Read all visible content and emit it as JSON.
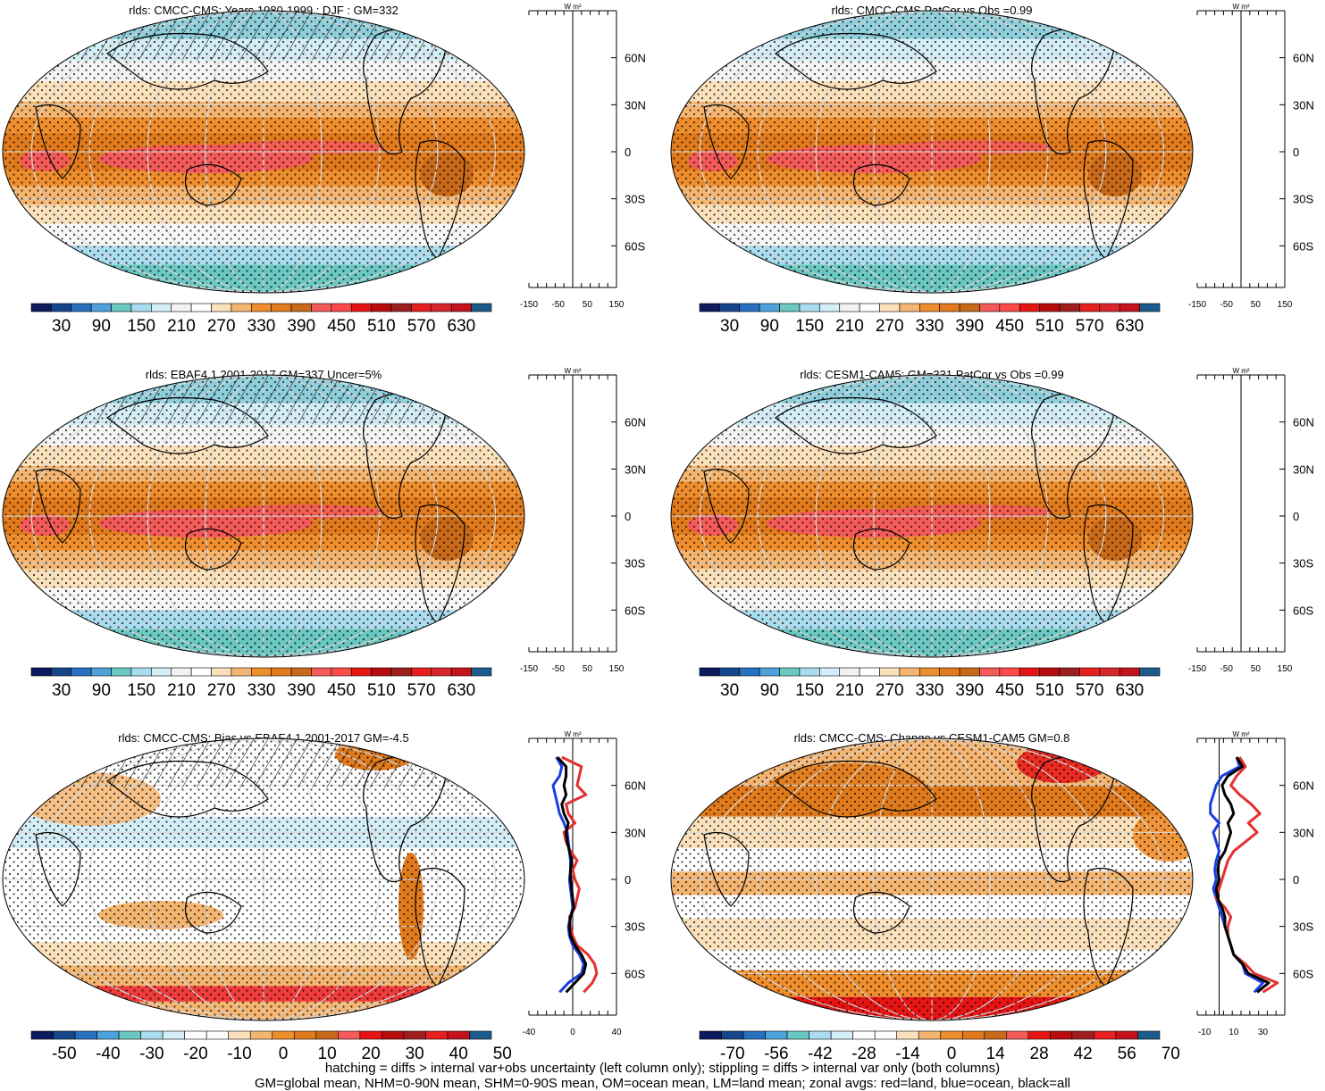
{
  "colors": {
    "abs_scale": [
      "#0c1a5e",
      "#15468c",
      "#2970c0",
      "#4ea2db",
      "#6bc7c2",
      "#a9dcee",
      "#d4eef7",
      "#f2f2f2",
      "#ffffff",
      "#fbe1bb",
      "#f4b571",
      "#ef8e2d",
      "#e07a1c",
      "#c86a1a",
      "#f55a5a",
      "#ff4a4a",
      "#e71414",
      "#b80c0c",
      "#9e1e1e",
      "#e91f1f",
      "#d8262c",
      "#c4131c",
      "#1c5b8c"
    ],
    "diff_scale": [
      "#0c1a5e",
      "#15468c",
      "#2970c0",
      "#4ea2db",
      "#6bc7c2",
      "#a9dcee",
      "#d4eef7",
      "#ffffff",
      "#ffffff",
      "#fbe1bb",
      "#f4b571",
      "#ef8e2d",
      "#e07a1c",
      "#c86a1a",
      "#f55a5a",
      "#e71414",
      "#b80c0c",
      "#9e1e1e",
      "#e91f1f",
      "#c4131c",
      "#1c5b8c"
    ],
    "land": "#e53030",
    "ocean": "#1a3fe0",
    "all": "#000000"
  },
  "chart_data": [
    {
      "type": "heatmap",
      "title": "rlds: CMCC-CMS: Years 1980-1999 : DJF : GM=332",
      "colorbar_ticks": [
        "30",
        "90",
        "150",
        "210",
        "270",
        "330",
        "390",
        "450",
        "510",
        "570",
        "630"
      ],
      "zonal_ticks": [
        "-150",
        "-50",
        "50",
        "150"
      ],
      "lat_ticks": [
        "60N",
        "30N",
        "0",
        "30S",
        "60S"
      ],
      "zonal_unit": "W m²",
      "scale": "abs",
      "hatched": true,
      "zonal_series": []
    },
    {
      "type": "heatmap",
      "title": "rlds: CMCC-CMS PatCor vs Obs =0.99",
      "colorbar_ticks": [
        "30",
        "90",
        "150",
        "210",
        "270",
        "330",
        "390",
        "450",
        "510",
        "570",
        "630"
      ],
      "zonal_ticks": [
        "-150",
        "-50",
        "50",
        "150"
      ],
      "lat_ticks": [
        "60N",
        "30N",
        "0",
        "30S",
        "60S"
      ],
      "zonal_unit": "W m²",
      "scale": "abs",
      "hatched": false,
      "zonal_series": []
    },
    {
      "type": "heatmap",
      "title": "rlds: EBAF4.1 2001-2017 GM=337 Uncer=5%",
      "colorbar_ticks": [
        "30",
        "90",
        "150",
        "210",
        "270",
        "330",
        "390",
        "450",
        "510",
        "570",
        "630"
      ],
      "zonal_ticks": [
        "-150",
        "-50",
        "50",
        "150"
      ],
      "lat_ticks": [
        "60N",
        "30N",
        "0",
        "30S",
        "60S"
      ],
      "zonal_unit": "W m²",
      "scale": "abs",
      "hatched": true,
      "zonal_series": []
    },
    {
      "type": "heatmap",
      "title": "rlds: CESM1-CAM5: GM=331 PatCor vs Obs =0.99",
      "colorbar_ticks": [
        "30",
        "90",
        "150",
        "210",
        "270",
        "330",
        "390",
        "450",
        "510",
        "570",
        "630"
      ],
      "zonal_ticks": [
        "-150",
        "-50",
        "50",
        "150"
      ],
      "lat_ticks": [
        "60N",
        "30N",
        "0",
        "30S",
        "60S"
      ],
      "zonal_unit": "W m²",
      "scale": "abs",
      "hatched": false,
      "zonal_series": []
    },
    {
      "type": "heatmap",
      "title": "rlds: CMCC-CMS: Bias vs EBAF4.1 2001-2017 GM=-4.5",
      "colorbar_ticks": [
        "-50",
        "-40",
        "-30",
        "-20",
        "-10",
        "0",
        "10",
        "20",
        "30",
        "40",
        "50"
      ],
      "zonal_ticks": [
        "-40",
        "0",
        "40"
      ],
      "lat_ticks": [
        "60N",
        "30N",
        "0",
        "30S",
        "60S"
      ],
      "zonal_unit": "W m²",
      "scale": "diff",
      "hatched": true,
      "zonal_xlim": [
        -40,
        40
      ],
      "zonal_series": [
        {
          "key": "ocean",
          "lat": [
            78,
            72,
            66,
            60,
            54,
            48,
            42,
            36,
            30,
            24,
            18,
            12,
            6,
            0,
            -6,
            -12,
            -18,
            -24,
            -30,
            -36,
            -42,
            -48,
            -54,
            -60,
            -66,
            -72
          ],
          "values": [
            -15,
            -10,
            -12,
            -18,
            -16,
            -14,
            -12,
            -8,
            -5,
            -4,
            -3,
            -2,
            -2,
            -3,
            -2,
            -1,
            0,
            -2,
            -4,
            -3,
            0,
            6,
            10,
            8,
            -4,
            -12
          ]
        },
        {
          "key": "land",
          "lat": [
            78,
            72,
            66,
            60,
            54,
            48,
            42,
            36,
            30,
            24,
            18,
            12,
            6,
            0,
            -6,
            -12,
            -18,
            -24,
            -30,
            -36,
            -42,
            -48,
            -54,
            -60,
            -66,
            -72
          ],
          "values": [
            -10,
            8,
            6,
            4,
            12,
            -6,
            -4,
            2,
            -8,
            -6,
            -2,
            4,
            0,
            2,
            6,
            4,
            2,
            -3,
            -2,
            0,
            4,
            14,
            20,
            22,
            18,
            10
          ]
        },
        {
          "key": "all",
          "lat": [
            78,
            72,
            66,
            60,
            54,
            48,
            42,
            36,
            30,
            24,
            18,
            12,
            6,
            0,
            -6,
            -12,
            -18,
            -24,
            -30,
            -36,
            -42,
            -48,
            -54,
            -60,
            -66,
            -72
          ],
          "values": [
            -14,
            -6,
            -6,
            -8,
            -6,
            -10,
            -8,
            -4,
            -6,
            -5,
            -3,
            -1,
            -2,
            -2,
            -1,
            0,
            1,
            -2,
            -3,
            -2,
            2,
            8,
            12,
            10,
            2,
            -6
          ]
        }
      ]
    },
    {
      "type": "heatmap",
      "title": "rlds: CMCC-CMS: Change vs CESM1-CAM5 GM=0.8",
      "colorbar_ticks": [
        "-70",
        "-56",
        "-42",
        "-28",
        "-14",
        "0",
        "14",
        "28",
        "42",
        "56",
        "70"
      ],
      "zonal_ticks": [
        "-10",
        "10",
        "30"
      ],
      "lat_ticks": [
        "60N",
        "30N",
        "0",
        "30S",
        "60S"
      ],
      "zonal_unit": "W m²",
      "scale": "diff",
      "hatched": false,
      "zonal_xlim": [
        -15,
        45
      ],
      "zonal_series": [
        {
          "key": "ocean",
          "lat": [
            78,
            72,
            66,
            60,
            54,
            48,
            42,
            36,
            30,
            24,
            18,
            12,
            6,
            0,
            -6,
            -12,
            -18,
            -24,
            -30,
            -36,
            -42,
            -48,
            -54,
            -60,
            -66,
            -72
          ],
          "values": [
            12,
            14,
            2,
            -2,
            -4,
            -6,
            -6,
            0,
            -4,
            -2,
            0,
            -2,
            -3,
            -2,
            -4,
            -2,
            0,
            2,
            4,
            6,
            8,
            10,
            16,
            18,
            30,
            24
          ]
        },
        {
          "key": "land",
          "lat": [
            78,
            72,
            66,
            60,
            54,
            48,
            42,
            36,
            30,
            24,
            18,
            12,
            6,
            0,
            -6,
            -12,
            -18,
            -24,
            -30,
            -36,
            -42,
            -48,
            -54,
            -60,
            -66,
            -72
          ],
          "values": [
            14,
            18,
            12,
            8,
            14,
            22,
            28,
            20,
            26,
            18,
            10,
            6,
            4,
            2,
            0,
            -2,
            4,
            8,
            6,
            6,
            8,
            10,
            18,
            24,
            40,
            30
          ]
        },
        {
          "key": "all",
          "lat": [
            78,
            72,
            66,
            60,
            54,
            48,
            42,
            36,
            30,
            24,
            18,
            12,
            6,
            0,
            -6,
            -12,
            -18,
            -24,
            -30,
            -36,
            -42,
            -48,
            -54,
            -60,
            -66,
            -72
          ],
          "values": [
            12,
            16,
            6,
            2,
            4,
            8,
            10,
            6,
            8,
            6,
            4,
            0,
            -1,
            0,
            -2,
            -1,
            2,
            4,
            4,
            6,
            8,
            10,
            16,
            20,
            34,
            26
          ]
        }
      ]
    }
  ],
  "footer": {
    "line1": "hatching = diffs > internal var+obs uncertainty (left column only); stippling = diffs > internal var only (both columns)",
    "line2": "GM=global mean, NHM=0-90N mean, SHM=0-90S mean, OM=ocean mean, LM=land mean; zonal avgs: red=land, blue=ocean, black=all"
  }
}
